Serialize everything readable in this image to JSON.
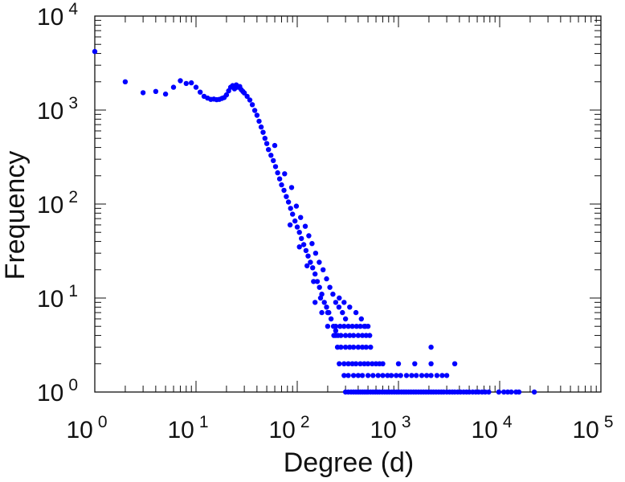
{
  "chart_data": {
    "type": "scatter",
    "title": "",
    "xlabel": "Degree (d)",
    "ylabel": "Frequency",
    "xscale": "log",
    "yscale": "log",
    "xlim": [
      1,
      100000
    ],
    "ylim": [
      1,
      10000
    ],
    "grid": false,
    "marker_color": "#0000ff",
    "x_ticks": [
      {
        "base": "10",
        "exp": "0"
      },
      {
        "base": "10",
        "exp": "1"
      },
      {
        "base": "10",
        "exp": "2"
      },
      {
        "base": "10",
        "exp": "3"
      },
      {
        "base": "10",
        "exp": "4"
      },
      {
        "base": "10",
        "exp": "5"
      }
    ],
    "y_ticks": [
      {
        "base": "10",
        "exp": "0"
      },
      {
        "base": "10",
        "exp": "1"
      },
      {
        "base": "10",
        "exp": "2"
      },
      {
        "base": "10",
        "exp": "3"
      },
      {
        "base": "10",
        "exp": "4"
      }
    ],
    "series": [
      {
        "points": [
          [
            1,
            4200
          ],
          [
            2,
            2000
          ],
          [
            3,
            1530
          ],
          [
            4,
            1580
          ],
          [
            5,
            1480
          ],
          [
            6,
            1750
          ],
          [
            7,
            2050
          ],
          [
            8,
            1920
          ],
          [
            9,
            1950
          ],
          [
            10,
            1750
          ],
          [
            11,
            1550
          ],
          [
            12,
            1400
          ],
          [
            13,
            1340
          ],
          [
            14,
            1300
          ],
          [
            15,
            1310
          ],
          [
            16,
            1290
          ],
          [
            17,
            1300
          ],
          [
            18,
            1330
          ],
          [
            19,
            1360
          ],
          [
            20,
            1450
          ],
          [
            21,
            1600
          ],
          [
            22,
            1750
          ],
          [
            23,
            1820
          ],
          [
            24,
            1680
          ],
          [
            25,
            1850
          ],
          [
            26,
            1750
          ],
          [
            27,
            1780
          ],
          [
            28,
            1650
          ],
          [
            29,
            1580
          ],
          [
            30,
            1520
          ],
          [
            32,
            1400
          ],
          [
            34,
            1280
          ],
          [
            36,
            1140
          ],
          [
            38,
            990
          ],
          [
            40,
            880
          ],
          [
            42,
            760
          ],
          [
            44,
            660
          ],
          [
            46,
            580
          ],
          [
            48,
            500
          ],
          [
            50,
            440
          ],
          [
            52,
            380
          ],
          [
            55,
            330
          ],
          [
            58,
            290
          ],
          [
            61,
            250
          ],
          [
            64,
            215
          ],
          [
            67,
            185
          ],
          [
            70,
            160
          ],
          [
            74,
            140
          ],
          [
            78,
            120
          ],
          [
            82,
            105
          ],
          [
            86,
            90
          ],
          [
            90,
            78
          ],
          [
            95,
            66
          ],
          [
            100,
            57
          ],
          [
            105,
            50
          ],
          [
            110,
            43
          ],
          [
            116,
            37
          ],
          [
            122,
            32
          ],
          [
            128,
            28
          ],
          [
            135,
            24
          ],
          [
            142,
            21
          ],
          [
            150,
            18
          ],
          [
            158,
            15
          ],
          [
            166,
            13
          ],
          [
            175,
            11
          ],
          [
            185,
            9
          ],
          [
            195,
            8
          ],
          [
            205,
            7
          ],
          [
            216,
            6
          ],
          [
            228,
            5
          ],
          [
            240,
            4.5
          ],
          [
            253,
            4
          ],
          [
            60,
            420
          ],
          [
            75,
            210
          ],
          [
            88,
            150
          ],
          [
            98,
            95
          ],
          [
            108,
            72
          ],
          [
            120,
            58
          ],
          [
            130,
            46
          ],
          [
            140,
            38
          ],
          [
            152,
            30
          ],
          [
            165,
            24
          ],
          [
            180,
            20
          ],
          [
            195,
            16
          ],
          [
            210,
            13
          ],
          [
            225,
            11
          ],
          [
            240,
            9
          ],
          [
            258,
            8
          ],
          [
            280,
            7
          ],
          [
            300,
            6
          ],
          [
            85,
            60
          ],
          [
            105,
            35
          ],
          [
            125,
            22
          ],
          [
            145,
            15
          ],
          [
            170,
            10
          ],
          [
            200,
            7
          ],
          [
            150,
            9
          ],
          [
            175,
            7
          ],
          [
            200,
            5
          ],
          [
            230,
            4
          ],
          [
            260,
            10
          ],
          [
            290,
            9
          ],
          [
            330,
            8
          ],
          [
            380,
            7
          ],
          [
            430,
            6
          ],
          [
            470,
            5
          ],
          [
            250,
            3
          ],
          [
            270,
            3
          ],
          [
            300,
            3
          ],
          [
            330,
            3
          ],
          [
            360,
            3
          ],
          [
            400,
            3
          ],
          [
            440,
            3
          ],
          [
            480,
            3
          ],
          [
            530,
            3
          ],
          [
            260,
            2
          ],
          [
            290,
            2
          ],
          [
            320,
            2
          ],
          [
            350,
            2
          ],
          [
            380,
            2
          ],
          [
            420,
            2
          ],
          [
            460,
            2
          ],
          [
            500,
            2
          ],
          [
            550,
            2
          ],
          [
            600,
            2
          ],
          [
            650,
            2
          ],
          [
            700,
            2
          ],
          [
            240,
            4
          ],
          [
            270,
            4
          ],
          [
            300,
            4
          ],
          [
            330,
            4
          ],
          [
            360,
            4
          ],
          [
            400,
            4
          ],
          [
            440,
            4
          ],
          [
            480,
            4
          ],
          [
            520,
            4
          ],
          [
            240,
            5
          ],
          [
            265,
            5
          ],
          [
            290,
            5
          ],
          [
            320,
            5
          ],
          [
            350,
            5
          ],
          [
            385,
            5
          ],
          [
            420,
            5
          ],
          [
            460,
            5
          ],
          [
            500,
            5
          ],
          [
            290,
            1.5
          ],
          [
            320,
            1.5
          ],
          [
            360,
            1.5
          ],
          [
            400,
            1.5
          ],
          [
            440,
            1.5
          ],
          [
            500,
            1.5
          ],
          [
            560,
            1.5
          ],
          [
            630,
            1.5
          ],
          [
            700,
            1.5
          ],
          [
            780,
            1.5
          ],
          [
            850,
            1.5
          ],
          [
            950,
            1.5
          ],
          [
            1050,
            1.5
          ],
          [
            1200,
            1.5
          ],
          [
            1350,
            1.5
          ],
          [
            1500,
            1.5
          ],
          [
            1700,
            1.5
          ],
          [
            1900,
            1.5
          ],
          [
            2100,
            1.5
          ],
          [
            2400,
            1.5
          ],
          [
            2700,
            1.5
          ],
          [
            3000,
            1.5
          ],
          [
            1000,
            2
          ],
          [
            1450,
            2
          ],
          [
            2100,
            2
          ],
          [
            3600,
            2
          ],
          [
            2100,
            3
          ],
          [
            300,
            1
          ],
          [
            320,
            1
          ],
          [
            340,
            1
          ],
          [
            360,
            1
          ],
          [
            380,
            1
          ],
          [
            400,
            1
          ],
          [
            420,
            1
          ],
          [
            440,
            1
          ],
          [
            460,
            1
          ],
          [
            480,
            1
          ],
          [
            500,
            1
          ],
          [
            530,
            1
          ],
          [
            560,
            1
          ],
          [
            590,
            1
          ],
          [
            620,
            1
          ],
          [
            650,
            1
          ],
          [
            690,
            1
          ],
          [
            730,
            1
          ],
          [
            770,
            1
          ],
          [
            810,
            1
          ],
          [
            860,
            1
          ],
          [
            910,
            1
          ],
          [
            960,
            1
          ],
          [
            1010,
            1
          ],
          [
            1070,
            1
          ],
          [
            1130,
            1
          ],
          [
            1190,
            1
          ],
          [
            1260,
            1
          ],
          [
            1330,
            1
          ],
          [
            1410,
            1
          ],
          [
            1490,
            1
          ],
          [
            1580,
            1
          ],
          [
            1670,
            1
          ],
          [
            1770,
            1
          ],
          [
            1870,
            1
          ],
          [
            1980,
            1
          ],
          [
            2100,
            1
          ],
          [
            2220,
            1
          ],
          [
            2350,
            1
          ],
          [
            2500,
            1
          ],
          [
            2650,
            1
          ],
          [
            2800,
            1
          ],
          [
            3000,
            1
          ],
          [
            3200,
            1
          ],
          [
            3400,
            1
          ],
          [
            3600,
            1
          ],
          [
            3850,
            1
          ],
          [
            4100,
            1
          ],
          [
            4400,
            1
          ],
          [
            4700,
            1
          ],
          [
            5000,
            1
          ],
          [
            5400,
            1
          ],
          [
            5800,
            1
          ],
          [
            6200,
            1
          ],
          [
            6700,
            1
          ],
          [
            7200,
            1
          ],
          [
            7800,
            1
          ],
          [
            9800,
            1
          ],
          [
            11000,
            1
          ],
          [
            12000,
            1
          ],
          [
            13000,
            1
          ],
          [
            14500,
            1
          ],
          [
            15500,
            1
          ],
          [
            22000,
            1
          ]
        ]
      }
    ]
  }
}
